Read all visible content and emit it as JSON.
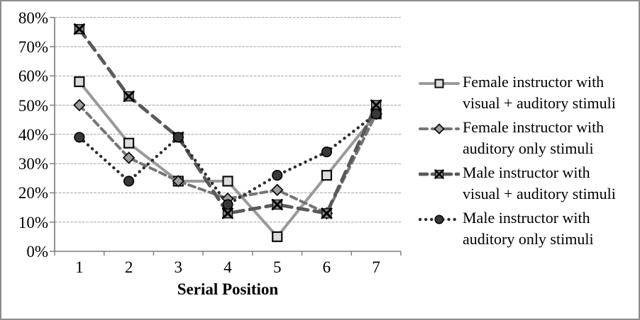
{
  "chart_data": {
    "type": "line",
    "title": "",
    "xlabel": "Serial Position",
    "ylabel": "",
    "x": [
      1,
      2,
      3,
      4,
      5,
      6,
      7
    ],
    "x_tick_labels": [
      "1",
      "2",
      "3",
      "4",
      "5",
      "6",
      "7"
    ],
    "y_tick_labels": [
      "0%",
      "10%",
      "20%",
      "30%",
      "40%",
      "50%",
      "60%",
      "70%",
      "80%"
    ],
    "ylim": [
      0,
      80
    ],
    "y_tick_step": 10,
    "grid": "horizontal",
    "legend_position": "right",
    "series": [
      {
        "name": "Female instructor with visual + auditory stimuli",
        "legend_lines": [
          "Female instructor with",
          "visual + auditory stimuli"
        ],
        "values": [
          58,
          37,
          24,
          24,
          5,
          26,
          47
        ],
        "marker": "square",
        "line_style": "solid",
        "line_color": "#9a9a9a",
        "marker_fill": "#dcdcdc",
        "marker_stroke": "#0d0d0d"
      },
      {
        "name": "Female instructor with auditory only stimuli",
        "legend_lines": [
          "Female instructor with",
          "auditory only stimuli"
        ],
        "values": [
          50,
          32,
          24,
          18,
          21,
          13,
          47
        ],
        "marker": "diamond",
        "line_style": "dashed",
        "line_color": "#767676",
        "marker_fill": "#9c9c9c",
        "marker_stroke": "#0d0d0d"
      },
      {
        "name": "Male instructor with visual + auditory stimuli",
        "legend_lines": [
          "Male instructor with",
          "visual + auditory stimuli"
        ],
        "values": [
          76,
          53,
          39,
          13,
          16,
          13,
          50
        ],
        "marker": "x-square",
        "line_style": "long-dash",
        "line_color": "#595959",
        "marker_fill": "#8c8c8c",
        "marker_stroke": "#0d0d0d"
      },
      {
        "name": "Male instructor with auditory only stimuli",
        "legend_lines": [
          "Male instructor with",
          "auditory only stimuli"
        ],
        "values": [
          39,
          24,
          39,
          16,
          26,
          34,
          47
        ],
        "marker": "circle",
        "line_style": "dotted",
        "line_color": "#2e2e2e",
        "marker_fill": "#383838",
        "marker_stroke": "#000000"
      }
    ],
    "colors": {
      "gridline": "#a3a3a3",
      "axis": "#7a7a7a",
      "frame_border": "#8c8c8c",
      "background": "#ffffff",
      "text": "#000000"
    }
  }
}
